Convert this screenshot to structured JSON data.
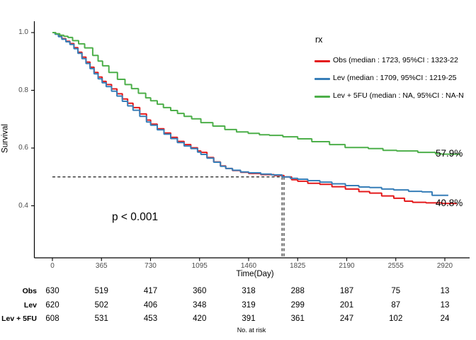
{
  "figure": {
    "xlabel": "Time(Day)",
    "ylabel": "Survival",
    "p_value": "p < 0.001",
    "end_labels": {
      "lev5fu": "57.9%",
      "obs": "40.8%"
    },
    "risk_caption": "No. at risk"
  },
  "colors": {
    "obs": "#E41A1C",
    "lev": "#377EB8",
    "lev5fu": "#4DAF4A",
    "axis": "#000000",
    "tick_text": "#4d4d4d",
    "median_line": "#1a1a1a"
  },
  "legend": {
    "title": "rx",
    "items": [
      {
        "id": "obs",
        "label": "Obs (median : 1723, 95%CI : 1323-22",
        "color": "#E41A1C"
      },
      {
        "id": "lev",
        "label": "Lev (median : 1709, 95%CI : 1219-25",
        "color": "#377EB8"
      },
      {
        "id": "lev5fu",
        "label": "Lev + 5FU (median : NA, 95%CI : NA-N",
        "color": "#4DAF4A"
      }
    ]
  },
  "chart_data": {
    "type": "line",
    "subtype": "kaplan-meier-step",
    "title": "",
    "xlabel": "Time(Day)",
    "ylabel": "Survival",
    "x_ticks": [
      0,
      365,
      730,
      1095,
      1460,
      1825,
      2190,
      2555,
      2920
    ],
    "y_ticks": [
      1.0,
      0.8,
      0.6,
      0.4
    ],
    "y_tick_labels": [
      "1.0",
      "0.8",
      "0.6",
      "0.4"
    ],
    "xlim": [
      -130,
      3115
    ],
    "ylim": [
      0.22,
      1.04
    ],
    "grid": false,
    "legend_position": "inside-top-right",
    "median_survival": {
      "y": 0.5,
      "x": [
        1709,
        1723
      ]
    },
    "annotation": {
      "text": "p < 0.001",
      "x": 640,
      "y": 0.36
    },
    "series": [
      {
        "name": "Obs",
        "color": "#E41A1C",
        "end_label": "40.8%",
        "points": [
          [
            0,
            1.0
          ],
          [
            20,
            0.995
          ],
          [
            45,
            0.988
          ],
          [
            70,
            0.979
          ],
          [
            100,
            0.97
          ],
          [
            130,
            0.962
          ],
          [
            160,
            0.948
          ],
          [
            190,
            0.932
          ],
          [
            220,
            0.915
          ],
          [
            250,
            0.898
          ],
          [
            280,
            0.88
          ],
          [
            310,
            0.862
          ],
          [
            340,
            0.846
          ],
          [
            370,
            0.831
          ],
          [
            400,
            0.82
          ],
          [
            440,
            0.805
          ],
          [
            480,
            0.788
          ],
          [
            520,
            0.77
          ],
          [
            560,
            0.755
          ],
          [
            600,
            0.74
          ],
          [
            650,
            0.718
          ],
          [
            700,
            0.697
          ],
          [
            731,
            0.683
          ],
          [
            780,
            0.667
          ],
          [
            830,
            0.652
          ],
          [
            880,
            0.637
          ],
          [
            930,
            0.623
          ],
          [
            980,
            0.612
          ],
          [
            1030,
            0.601
          ],
          [
            1080,
            0.59
          ],
          [
            1105,
            0.585
          ],
          [
            1150,
            0.567
          ],
          [
            1200,
            0.552
          ],
          [
            1250,
            0.538
          ],
          [
            1290,
            0.529
          ],
          [
            1340,
            0.522
          ],
          [
            1400,
            0.516
          ],
          [
            1460,
            0.512
          ],
          [
            1550,
            0.508
          ],
          [
            1650,
            0.505
          ],
          [
            1723,
            0.5
          ],
          [
            1780,
            0.49
          ],
          [
            1825,
            0.485
          ],
          [
            1900,
            0.478
          ],
          [
            1990,
            0.474
          ],
          [
            2080,
            0.466
          ],
          [
            2180,
            0.458
          ],
          [
            2280,
            0.449
          ],
          [
            2360,
            0.444
          ],
          [
            2450,
            0.434
          ],
          [
            2540,
            0.426
          ],
          [
            2620,
            0.416
          ],
          [
            2680,
            0.412
          ],
          [
            2780,
            0.41
          ],
          [
            2900,
            0.408
          ],
          [
            3010,
            0.408
          ]
        ]
      },
      {
        "name": "Lev",
        "color": "#377EB8",
        "end_label": "",
        "points": [
          [
            0,
            1.0
          ],
          [
            20,
            0.994
          ],
          [
            45,
            0.986
          ],
          [
            70,
            0.977
          ],
          [
            100,
            0.968
          ],
          [
            130,
            0.959
          ],
          [
            160,
            0.944
          ],
          [
            190,
            0.928
          ],
          [
            220,
            0.91
          ],
          [
            250,
            0.893
          ],
          [
            280,
            0.875
          ],
          [
            310,
            0.857
          ],
          [
            340,
            0.84
          ],
          [
            370,
            0.826
          ],
          [
            400,
            0.813
          ],
          [
            440,
            0.797
          ],
          [
            480,
            0.78
          ],
          [
            520,
            0.762
          ],
          [
            560,
            0.746
          ],
          [
            600,
            0.731
          ],
          [
            650,
            0.71
          ],
          [
            700,
            0.69
          ],
          [
            731,
            0.679
          ],
          [
            780,
            0.663
          ],
          [
            830,
            0.648
          ],
          [
            880,
            0.633
          ],
          [
            930,
            0.619
          ],
          [
            980,
            0.607
          ],
          [
            1030,
            0.598
          ],
          [
            1080,
            0.586
          ],
          [
            1105,
            0.578
          ],
          [
            1150,
            0.565
          ],
          [
            1200,
            0.551
          ],
          [
            1250,
            0.537
          ],
          [
            1290,
            0.529
          ],
          [
            1340,
            0.523
          ],
          [
            1400,
            0.517
          ],
          [
            1460,
            0.514
          ],
          [
            1550,
            0.51
          ],
          [
            1630,
            0.507
          ],
          [
            1709,
            0.5
          ],
          [
            1770,
            0.495
          ],
          [
            1825,
            0.492
          ],
          [
            1900,
            0.487
          ],
          [
            1990,
            0.482
          ],
          [
            2080,
            0.476
          ],
          [
            2180,
            0.47
          ],
          [
            2280,
            0.465
          ],
          [
            2360,
            0.463
          ],
          [
            2450,
            0.458
          ],
          [
            2540,
            0.455
          ],
          [
            2650,
            0.45
          ],
          [
            2750,
            0.448
          ],
          [
            2825,
            0.436
          ],
          [
            2946,
            0.436
          ]
        ]
      },
      {
        "name": "Lev + 5FU",
        "color": "#4DAF4A",
        "end_label": "57.9%",
        "points": [
          [
            0,
            1.0
          ],
          [
            25,
            0.996
          ],
          [
            55,
            0.991
          ],
          [
            85,
            0.987
          ],
          [
            116,
            0.983
          ],
          [
            150,
            0.972
          ],
          [
            195,
            0.961
          ],
          [
            240,
            0.947
          ],
          [
            300,
            0.921
          ],
          [
            340,
            0.901
          ],
          [
            373,
            0.885
          ],
          [
            420,
            0.862
          ],
          [
            484,
            0.838
          ],
          [
            540,
            0.82
          ],
          [
            589,
            0.806
          ],
          [
            640,
            0.79
          ],
          [
            694,
            0.774
          ],
          [
            731,
            0.764
          ],
          [
            780,
            0.752
          ],
          [
            826,
            0.74
          ],
          [
            880,
            0.73
          ],
          [
            931,
            0.72
          ],
          [
            980,
            0.71
          ],
          [
            1036,
            0.701
          ],
          [
            1105,
            0.688
          ],
          [
            1194,
            0.676
          ],
          [
            1283,
            0.664
          ],
          [
            1370,
            0.656
          ],
          [
            1457,
            0.651
          ],
          [
            1540,
            0.646
          ],
          [
            1615,
            0.644
          ],
          [
            1715,
            0.639
          ],
          [
            1825,
            0.632
          ],
          [
            1930,
            0.622
          ],
          [
            2062,
            0.612
          ],
          [
            2178,
            0.602
          ],
          [
            2351,
            0.598
          ],
          [
            2460,
            0.592
          ],
          [
            2562,
            0.59
          ],
          [
            2719,
            0.585
          ],
          [
            2851,
            0.58
          ],
          [
            2898,
            0.579
          ],
          [
            3035,
            0.579
          ]
        ]
      }
    ]
  },
  "risk_table": {
    "caption": "No. at risk",
    "time_columns": [
      0,
      365,
      730,
      1095,
      1460,
      1825,
      2190,
      2555,
      2920
    ],
    "rows": [
      {
        "label": "Obs",
        "values": [
          "630",
          "519",
          "417",
          "360",
          "318",
          "288",
          "187",
          "75",
          "13"
        ]
      },
      {
        "label": "Lev",
        "values": [
          "620",
          "502",
          "406",
          "348",
          "319",
          "299",
          "201",
          "87",
          "13"
        ]
      },
      {
        "label": "Lev + 5FU",
        "values": [
          "608",
          "531",
          "453",
          "420",
          "391",
          "361",
          "247",
          "102",
          "24"
        ]
      }
    ]
  }
}
